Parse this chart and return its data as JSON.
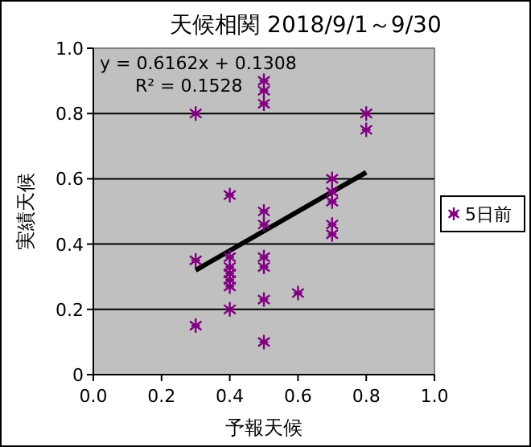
{
  "chart_data": {
    "type": "scatter",
    "title": "天候相関 2018/9/1～9/30",
    "xlabel": "予報天候",
    "ylabel": "実績天候",
    "xlim": [
      0,
      1
    ],
    "ylim": [
      0,
      1
    ],
    "xticks": [
      {
        "value": 0,
        "label": "0.0"
      },
      {
        "value": 0.2,
        "label": "0.2"
      },
      {
        "value": 0.4,
        "label": "0.4"
      },
      {
        "value": 0.6,
        "label": "0.6"
      },
      {
        "value": 0.8,
        "label": "0.8"
      },
      {
        "value": 1,
        "label": "1.0"
      }
    ],
    "yticks": [
      {
        "value": 0,
        "label": "0"
      },
      {
        "value": 0.2,
        "label": "0.2"
      },
      {
        "value": 0.4,
        "label": "0.4"
      },
      {
        "value": 0.6,
        "label": "0.6"
      },
      {
        "value": 0.8,
        "label": "0.8"
      },
      {
        "value": 1,
        "label": "1.0"
      }
    ],
    "grid": "y",
    "legend": "right",
    "marker": "cross",
    "annotations": [
      "y = 0.6162x + 0.1308",
      "R² = 0.1528"
    ],
    "series": [
      {
        "name": "5日前",
        "color": "#800080",
        "x": [
          0.3,
          0.3,
          0.3,
          0.4,
          0.4,
          0.4,
          0.4,
          0.4,
          0.4,
          0.4,
          0.5,
          0.5,
          0.5,
          0.5,
          0.5,
          0.5,
          0.5,
          0.5,
          0.5,
          0.6,
          0.7,
          0.7,
          0.7,
          0.7,
          0.7,
          0.8,
          0.8
        ],
        "values": [
          0.8,
          0.35,
          0.15,
          0.55,
          0.36,
          0.33,
          0.31,
          0.29,
          0.27,
          0.2,
          0.9,
          0.87,
          0.83,
          0.5,
          0.46,
          0.36,
          0.33,
          0.23,
          0.1,
          0.25,
          0.6,
          0.56,
          0.53,
          0.46,
          0.43,
          0.8,
          0.75
        ]
      },
      {
        "type": "line",
        "color": "#000000",
        "x": [
          0.3,
          0.8
        ],
        "values": [
          0.32,
          0.62
        ],
        "marker": "none"
      }
    ]
  }
}
